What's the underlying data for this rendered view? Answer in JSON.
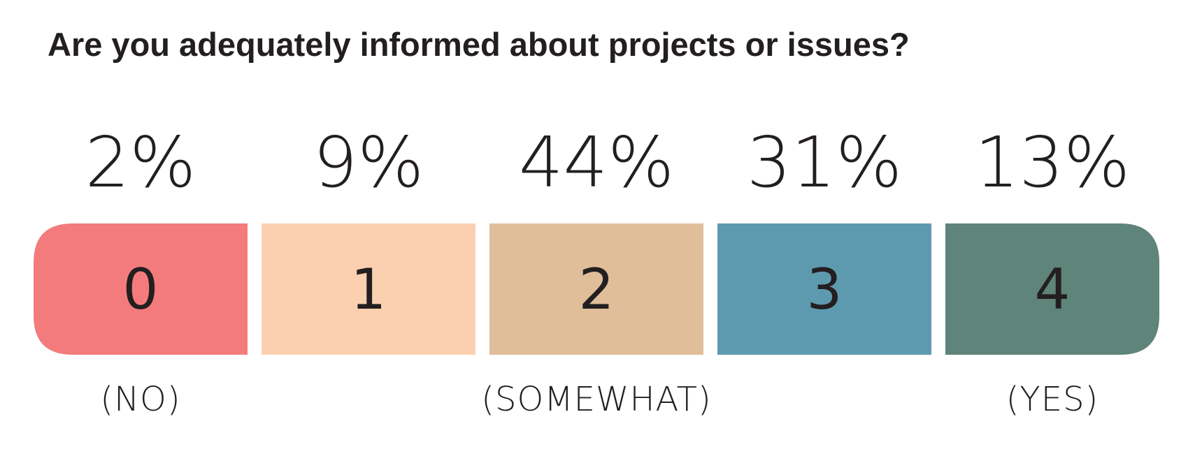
{
  "chart_data": {
    "type": "bar",
    "title": "Are you adequately informed about projects or issues?",
    "categories": [
      "0",
      "1",
      "2",
      "3",
      "4"
    ],
    "values": [
      2,
      9,
      44,
      31,
      13
    ],
    "value_labels": [
      "2%",
      "9%",
      "44%",
      "31%",
      "13%"
    ],
    "colors": [
      "#f37b7c",
      "#fbd0b0",
      "#dfbe99",
      "#5e9aaf",
      "#5f847a"
    ],
    "anchor_labels": [
      {
        "category": "0",
        "text": "(NO)"
      },
      {
        "category": "2",
        "text": "(SOMEWHAT)"
      },
      {
        "category": "4",
        "text": "(YES)"
      }
    ],
    "grid": false,
    "legend": "none"
  }
}
